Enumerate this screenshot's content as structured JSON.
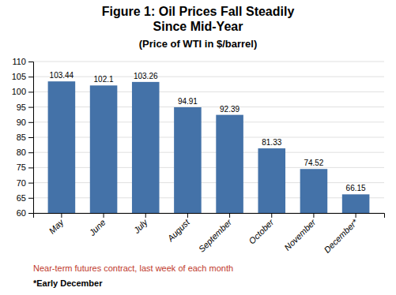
{
  "chart_data": {
    "type": "bar",
    "title": [
      "Figure 1: Oil Prices Fall Steadily",
      "Since Mid-Year"
    ],
    "subtitle": "(Price of WTI in $/barrel)",
    "categories": [
      "May",
      "June",
      "July",
      "August",
      "September",
      "October",
      "November",
      "December*"
    ],
    "values": [
      103.44,
      102.1,
      103.26,
      94.91,
      92.39,
      81.33,
      74.52,
      66.15
    ],
    "color": "#4472A8",
    "ylim": [
      60,
      110
    ],
    "yticks": [
      60,
      65,
      70,
      75,
      80,
      85,
      90,
      95,
      100,
      105,
      110
    ],
    "grid": true,
    "data_labels": true,
    "annotations": [
      "Near-term futures contract, last week of each month",
      "*Early December"
    ]
  }
}
